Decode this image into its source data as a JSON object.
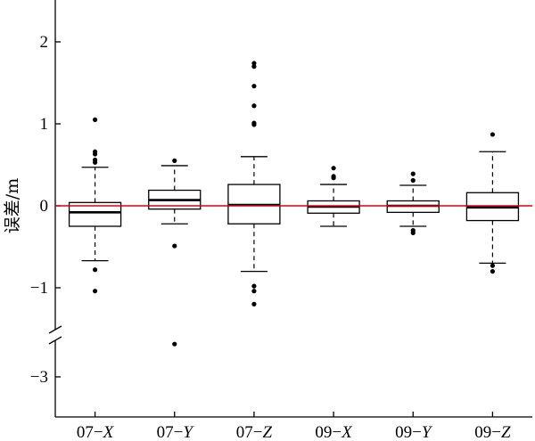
{
  "chart_data": {
    "type": "box",
    "ylabel": "误差/m",
    "y_ticks": [
      {
        "value": 2,
        "label": "2"
      },
      {
        "value": 1,
        "label": "1"
      },
      {
        "value": 0,
        "label": "0"
      },
      {
        "value": -1,
        "label": "−1"
      },
      {
        "value": -3,
        "label": "−3"
      }
    ],
    "axis_break": true,
    "reference_line": {
      "y": 0,
      "color": "#e00000"
    },
    "grid": false,
    "categories": [
      {
        "prefix": "07−",
        "axis": "X"
      },
      {
        "prefix": "07−",
        "axis": "Y"
      },
      {
        "prefix": "07−",
        "axis": "Z"
      },
      {
        "prefix": "09−",
        "axis": "X"
      },
      {
        "prefix": "09−",
        "axis": "Y"
      },
      {
        "prefix": "09−",
        "axis": "Z"
      }
    ],
    "boxes": [
      {
        "whisker_low": -0.67,
        "q1": -0.25,
        "median": -0.08,
        "q3": 0.04,
        "whisker_high": 0.47,
        "outliers": [
          1.05,
          0.66,
          0.63,
          0.56,
          0.53,
          -0.78,
          -1.04
        ]
      },
      {
        "whisker_low": -0.22,
        "q1": -0.04,
        "median": 0.07,
        "q3": 0.19,
        "whisker_high": 0.49,
        "outliers": [
          0.55,
          -0.49,
          -2.6
        ]
      },
      {
        "whisker_low": -0.8,
        "q1": -0.22,
        "median": 0.01,
        "q3": 0.26,
        "whisker_high": 0.6,
        "outliers": [
          1.74,
          1.7,
          1.46,
          1.22,
          1.01,
          0.99,
          -0.98,
          -1.04,
          -1.2
        ]
      },
      {
        "whisker_low": -0.25,
        "q1": -0.09,
        "median": -0.01,
        "q3": 0.06,
        "whisker_high": 0.26,
        "outliers": [
          0.46,
          0.36,
          0.34
        ]
      },
      {
        "whisker_low": -0.25,
        "q1": -0.08,
        "median": 0.0,
        "q3": 0.06,
        "whisker_high": 0.25,
        "outliers": [
          0.39,
          0.31,
          -0.3,
          -0.33
        ]
      },
      {
        "whisker_low": -0.7,
        "q1": -0.18,
        "median": -0.02,
        "q3": 0.16,
        "whisker_high": 0.66,
        "outliers": [
          0.87,
          -0.73,
          -0.8
        ]
      }
    ]
  }
}
